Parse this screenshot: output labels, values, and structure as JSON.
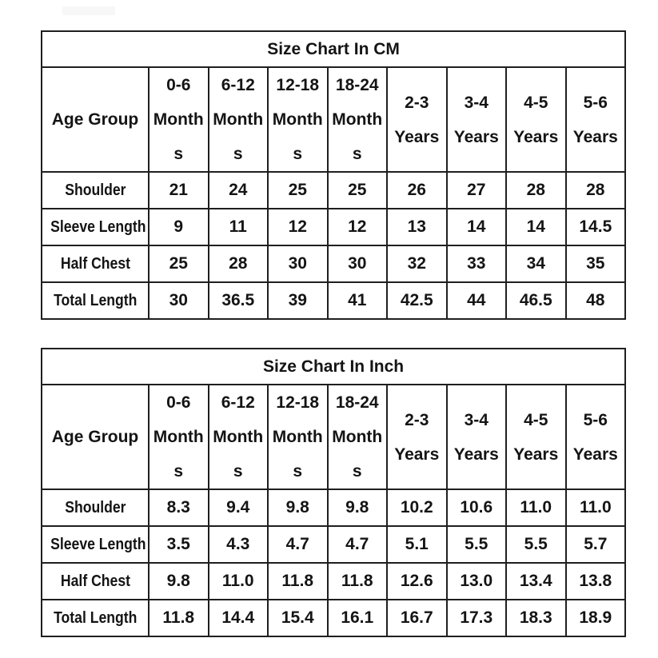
{
  "page": {
    "background": "#ffffff",
    "text_color": "#141414",
    "border_color": "#1f1f1f"
  },
  "watermark": {
    "present": true,
    "color": "#f7f7f7"
  },
  "chart_data": [
    {
      "type": "table",
      "title": "Size Chart In CM",
      "unit": "cm",
      "corner_header": "Age Group",
      "column_headers": [
        [
          "0-6",
          "Months"
        ],
        [
          "6-12",
          "Months"
        ],
        [
          "12-18",
          "Months"
        ],
        [
          "18-24",
          "Months"
        ],
        [
          "2-3",
          "Years"
        ],
        [
          "3-4",
          "Years"
        ],
        [
          "4-5",
          "Years"
        ],
        [
          "5-6",
          "Years"
        ]
      ],
      "rows": [
        {
          "label": "Shoulder",
          "values": [
            "21",
            "24",
            "25",
            "25",
            "26",
            "27",
            "28",
            "28"
          ]
        },
        {
          "label": "Sleeve Length",
          "values": [
            "9",
            "11",
            "12",
            "12",
            "13",
            "14",
            "14",
            "14.5"
          ]
        },
        {
          "label": "Half Chest",
          "values": [
            "25",
            "28",
            "30",
            "30",
            "32",
            "33",
            "34",
            "35"
          ]
        },
        {
          "label": "Total Length",
          "values": [
            "30",
            "36.5",
            "39",
            "41",
            "42.5",
            "44",
            "46.5",
            "48"
          ]
        }
      ]
    },
    {
      "type": "table",
      "title": "Size Chart In Inch",
      "unit": "inch",
      "corner_header": "Age Group",
      "column_headers": [
        [
          "0-6",
          "Months"
        ],
        [
          "6-12",
          "Months"
        ],
        [
          "12-18",
          "Months"
        ],
        [
          "18-24",
          "Months"
        ],
        [
          "2-3",
          "Years"
        ],
        [
          "3-4",
          "Years"
        ],
        [
          "4-5",
          "Years"
        ],
        [
          "5-6",
          "Years"
        ]
      ],
      "rows": [
        {
          "label": "Shoulder",
          "values": [
            "8.3",
            "9.4",
            "9.8",
            "9.8",
            "10.2",
            "10.6",
            "11.0",
            "11.0"
          ]
        },
        {
          "label": "Sleeve Length",
          "values": [
            "3.5",
            "4.3",
            "4.7",
            "4.7",
            "5.1",
            "5.5",
            "5.5",
            "5.7"
          ]
        },
        {
          "label": "Half Chest",
          "values": [
            "9.8",
            "11.0",
            "11.8",
            "11.8",
            "12.6",
            "13.0",
            "13.4",
            "13.8"
          ]
        },
        {
          "label": "Total Length",
          "values": [
            "11.8",
            "14.4",
            "15.4",
            "16.1",
            "16.7",
            "17.3",
            "18.3",
            "18.9"
          ]
        }
      ]
    }
  ]
}
